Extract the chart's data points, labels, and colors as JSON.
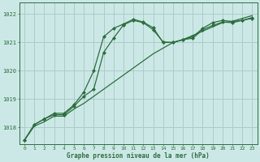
{
  "title": "Graphe pression niveau de la mer (hPa)",
  "bg_color": "#cce8e6",
  "grid_color": "#aacccc",
  "line_color": "#2d6e3e",
  "x_ticks": [
    0,
    1,
    2,
    3,
    4,
    5,
    6,
    7,
    8,
    9,
    10,
    11,
    12,
    13,
    14,
    15,
    16,
    17,
    18,
    19,
    20,
    21,
    22,
    23
  ],
  "ylim": [
    1017.4,
    1022.4
  ],
  "yticks": [
    1018,
    1019,
    1020,
    1021,
    1022
  ],
  "series1_x": [
    0,
    1,
    2,
    3,
    4,
    5,
    6,
    7,
    8,
    9,
    10,
    11,
    12,
    13,
    14,
    15,
    16,
    17,
    18,
    19,
    20,
    21,
    22,
    23
  ],
  "series1_y": [
    1017.55,
    1018.05,
    1018.2,
    1018.4,
    1018.4,
    1018.65,
    1018.85,
    1019.1,
    1019.35,
    1019.6,
    1019.85,
    1020.1,
    1020.35,
    1020.6,
    1020.8,
    1021.0,
    1021.1,
    1021.25,
    1021.4,
    1021.55,
    1021.7,
    1021.75,
    1021.85,
    1021.95
  ],
  "series2_x": [
    0,
    1,
    2,
    3,
    4,
    5,
    6,
    7,
    8,
    9,
    10,
    11,
    12,
    13,
    14,
    15,
    16,
    17,
    18,
    19,
    20,
    21,
    22,
    23
  ],
  "series2_y": [
    1017.55,
    1018.1,
    1018.3,
    1018.45,
    1018.45,
    1018.75,
    1019.1,
    1019.35,
    1020.65,
    1021.15,
    1021.62,
    1021.78,
    1021.7,
    1021.45,
    1021.02,
    1021.0,
    1021.1,
    1021.15,
    1021.45,
    1021.6,
    1021.72,
    1021.7,
    1021.78,
    1021.85
  ],
  "series3_x": [
    0,
    1,
    2,
    3,
    4,
    5,
    6,
    7,
    8,
    9,
    10,
    11,
    12,
    13,
    14,
    15,
    16,
    17,
    18,
    19,
    20,
    21,
    22,
    23
  ],
  "series3_y": [
    1017.55,
    1018.1,
    1018.3,
    1018.5,
    1018.5,
    1018.8,
    1019.25,
    1020.0,
    1021.2,
    1021.5,
    1021.65,
    1021.82,
    1021.72,
    1021.52,
    1021.0,
    1021.0,
    1021.1,
    1021.2,
    1021.5,
    1021.7,
    1021.78,
    1021.74,
    1021.78,
    1021.88
  ]
}
